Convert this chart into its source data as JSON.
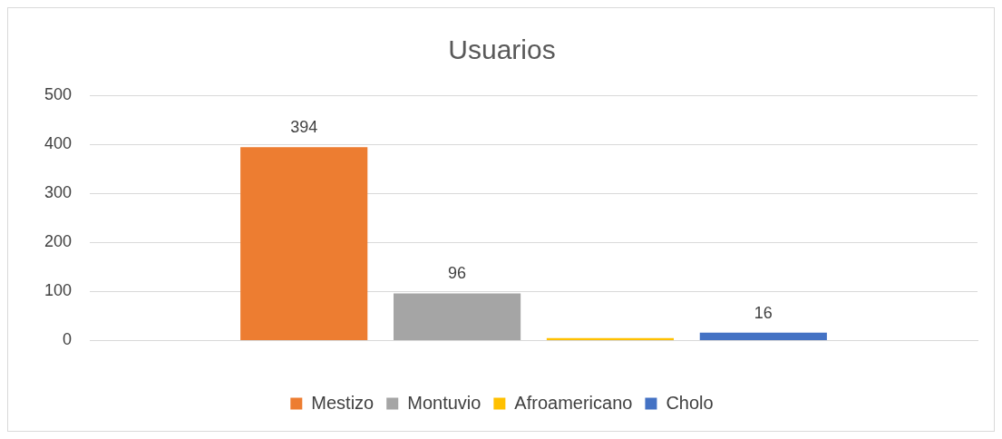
{
  "chart_data": {
    "type": "bar",
    "title": "Usuarios",
    "categories": [
      null
    ],
    "series": [
      {
        "name": "Mestizo",
        "color": "#ed7d31",
        "values": [
          394
        ],
        "value_labels": [
          "394"
        ]
      },
      {
        "name": "Montuvio",
        "color": "#a5a5a5",
        "values": [
          96
        ],
        "value_labels": [
          "96"
        ]
      },
      {
        "name": "Afroamericano",
        "color": "#ffc000",
        "values": [
          5
        ],
        "value_labels": [
          null
        ]
      },
      {
        "name": "Cholo",
        "color": "#4472c4",
        "values": [
          16
        ],
        "value_labels": [
          "16"
        ]
      }
    ],
    "ylim": [
      0,
      500
    ],
    "yticks": [
      0,
      100,
      200,
      300,
      400,
      500
    ],
    "grid": "y",
    "legend": "bottom"
  }
}
